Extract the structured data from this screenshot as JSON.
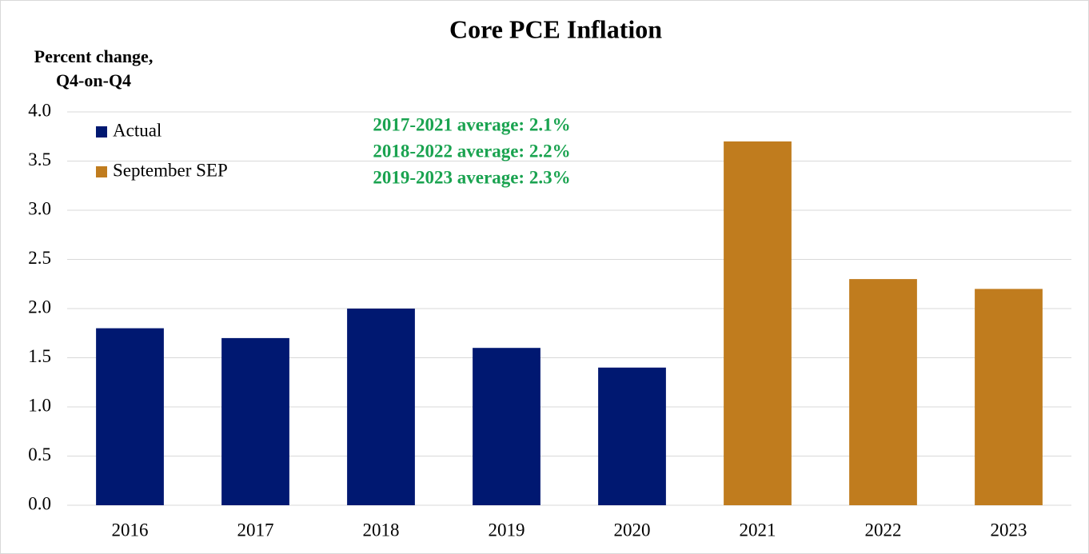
{
  "chart_data": {
    "type": "bar",
    "title": "Core PCE Inflation",
    "y_label": [
      "Percent change,",
      "Q4-on-Q4"
    ],
    "categories": [
      "2016",
      "2017",
      "2018",
      "2019",
      "2020",
      "2021",
      "2022",
      "2023"
    ],
    "series": [
      {
        "name": "Actual",
        "color": "#001871",
        "values": [
          1.8,
          1.7,
          2.0,
          1.6,
          1.4,
          null,
          null,
          null
        ]
      },
      {
        "name": "September SEP",
        "color": "#c07c1e",
        "values": [
          null,
          null,
          null,
          null,
          null,
          3.7,
          2.3,
          2.2
        ]
      }
    ],
    "ylim": [
      0,
      4
    ],
    "yticks": [
      {
        "value": 0,
        "label": "0.0"
      },
      0.5,
      {
        "value": 1,
        "label": "1.0"
      },
      1.5,
      {
        "value": 2,
        "label": "2.0"
      },
      2.5,
      {
        "value": 3,
        "label": "3.0"
      },
      3.5,
      {
        "value": 4,
        "label": "4.0"
      }
    ],
    "grid": true,
    "legend": "upper left",
    "annotations": {
      "color": "#1aa350",
      "lines": [
        "2017-2021 average:  2.1%",
        "2018-2022 average:  2.2%",
        "2019-2023 average:  2.3%"
      ]
    }
  }
}
